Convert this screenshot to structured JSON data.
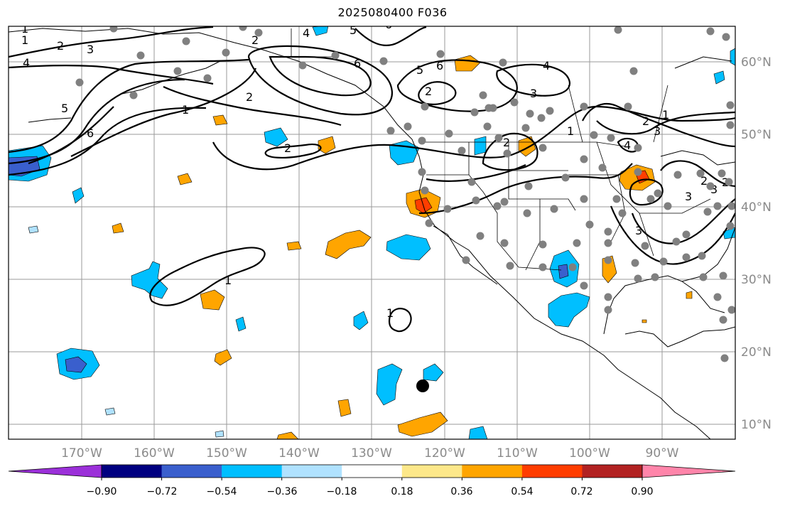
{
  "title": "2025080400 F036",
  "lon_labels": [
    "170°W",
    "160°W",
    "150°W",
    "140°W",
    "130°W",
    "120°W",
    "110°W",
    "100°W",
    "90°W"
  ],
  "lat_labels": [
    "60°N",
    "50°N",
    "40°N",
    "30°N",
    "20°N",
    "10°N"
  ],
  "colorbar": {
    "tick_labels": [
      "−0.90",
      "−0.72",
      "−0.54",
      "−0.36",
      "−0.18",
      "0.18",
      "0.36",
      "0.54",
      "0.72",
      "0.90"
    ],
    "colors": [
      "#9b30d9",
      "#000080",
      "#3a5fcd",
      "#00bfff",
      "#b0e2ff",
      "#ffffff",
      "#fde88a",
      "#ffa500",
      "#ff3d00",
      "#b22222",
      "#ff85aa"
    ]
  },
  "contour_labels": [
    "1",
    "2",
    "3",
    "4",
    "5",
    "6",
    "1",
    "2",
    "2",
    "6",
    "5",
    "6",
    "2",
    "4",
    "3",
    "1",
    "2",
    "3",
    "1",
    "2",
    "3",
    "4",
    "5",
    "6",
    "2",
    "1",
    "1",
    "1",
    "4",
    "2",
    "3",
    "2",
    "3"
  ],
  "colors": {
    "stations": "#808080",
    "marker": "#000000",
    "grid": "#999999",
    "contours": "#000000"
  }
}
